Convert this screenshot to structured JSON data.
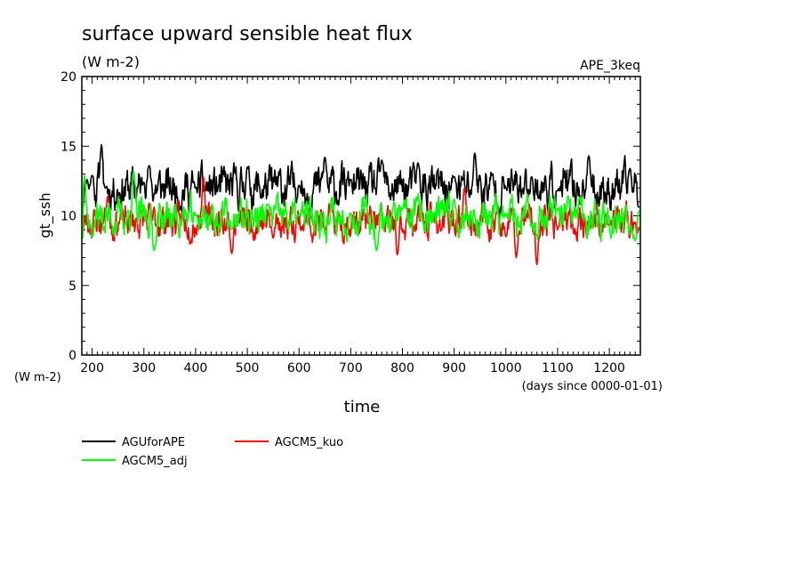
{
  "chart_data": {
    "type": "line",
    "title": "surface upward sensible heat flux",
    "units": "(W m-2)",
    "experiment": "APE_3keq",
    "ylabel": "gt_ssh",
    "yunits": "(W m-2)",
    "xlabel": "time",
    "xunits": "(days since 0000-01-01)",
    "xlim": [
      180,
      1260
    ],
    "ylim": [
      0,
      20
    ],
    "xticks": [
      200,
      300,
      400,
      500,
      600,
      700,
      800,
      900,
      1000,
      1100,
      1200
    ],
    "yticks": [
      0,
      5,
      10,
      15,
      20
    ],
    "series": [
      {
        "name": "AGUforAPE",
        "color": "#000000",
        "mean": 12.0,
        "amp": 0.9,
        "seed": 11,
        "points": [
          [
            180,
            10.8
          ],
          [
            190,
            12.6
          ],
          [
            200,
            12.9
          ],
          [
            218,
            15.1
          ],
          [
            225,
            12.0
          ],
          [
            300,
            12.4
          ],
          [
            310,
            13.6
          ],
          [
            400,
            12.0
          ],
          [
            500,
            13.5
          ],
          [
            600,
            12.2
          ],
          [
            650,
            14.2
          ],
          [
            700,
            12.6
          ],
          [
            760,
            14.0
          ],
          [
            830,
            13.8
          ],
          [
            900,
            12.8
          ],
          [
            940,
            14.5
          ],
          [
            1000,
            12.0
          ],
          [
            1050,
            12.8
          ],
          [
            1100,
            11.8
          ],
          [
            1160,
            14.3
          ],
          [
            1240,
            13.4
          ],
          [
            1258,
            10.6
          ]
        ]
      },
      {
        "name": "AGCM5_kuo",
        "color": "#ff0000",
        "mean": 9.6,
        "amp": 0.7,
        "seed": 23,
        "points": [
          [
            180,
            8.6
          ],
          [
            230,
            11.4
          ],
          [
            415,
            12.8
          ],
          [
            470,
            7.3
          ],
          [
            550,
            8.4
          ],
          [
            650,
            9.0
          ],
          [
            790,
            7.2
          ],
          [
            920,
            12.0
          ],
          [
            1000,
            8.5
          ],
          [
            1020,
            7.0
          ],
          [
            1060,
            6.5
          ],
          [
            1100,
            9.0
          ],
          [
            1200,
            9.3
          ],
          [
            1258,
            9.2
          ]
        ]
      },
      {
        "name": "AGCM5_adj",
        "color": "#00ff00",
        "mean": 9.9,
        "amp": 0.8,
        "seed": 37,
        "points": [
          [
            180,
            8.3
          ],
          [
            185,
            12.9
          ],
          [
            200,
            8.5
          ],
          [
            280,
            13.2
          ],
          [
            320,
            7.5
          ],
          [
            400,
            10.0
          ],
          [
            470,
            9.0
          ],
          [
            540,
            10.8
          ],
          [
            600,
            10.0
          ],
          [
            700,
            10.2
          ],
          [
            750,
            7.5
          ],
          [
            800,
            10.5
          ],
          [
            900,
            11.2
          ],
          [
            1000,
            10.0
          ],
          [
            1100,
            10.5
          ],
          [
            1250,
            8.2
          ],
          [
            1258,
            10.4
          ]
        ]
      }
    ]
  }
}
